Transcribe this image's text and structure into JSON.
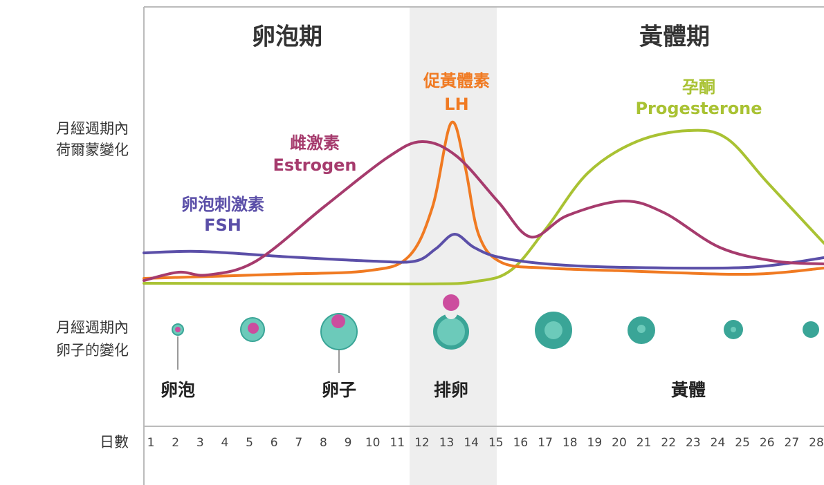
{
  "phases": {
    "follicular": "卵泡期",
    "luteal": "黃體期"
  },
  "row_labels": {
    "hormones": [
      "月經週期內",
      "荷爾蒙變化"
    ],
    "ovary": [
      "月經週期內",
      "卵子的變化"
    ],
    "days": "日數"
  },
  "hormones": {
    "estrogen": {
      "name": "雌激素",
      "english": "Estrogen"
    },
    "fsh": {
      "name": "卵泡刺激素",
      "english": "FSH"
    },
    "lh": {
      "name": "促黃體素",
      "english": "LH"
    },
    "progesterone": {
      "name": "孕酮",
      "english": "Progesterone"
    }
  },
  "stages": {
    "follicle": "卵泡",
    "egg": "卵子",
    "ovulation": "排卵",
    "corpus_luteum": "黃體"
  },
  "days": [
    1,
    2,
    3,
    4,
    5,
    6,
    7,
    8,
    9,
    10,
    11,
    12,
    13,
    14,
    15,
    16,
    17,
    18,
    19,
    20,
    21,
    22,
    23,
    24,
    25,
    26,
    27,
    28
  ]
}
